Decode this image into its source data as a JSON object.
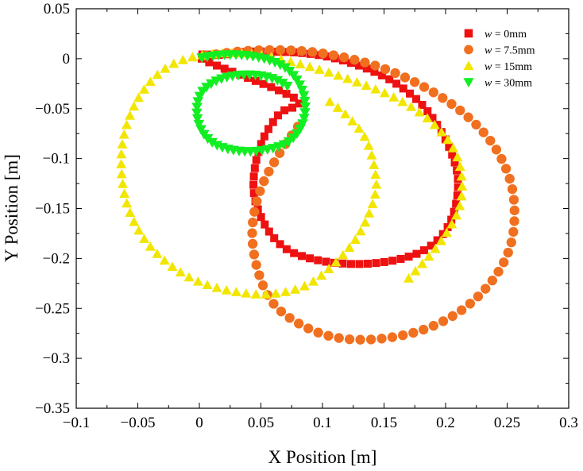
{
  "chart_data": {
    "type": "scatter",
    "xlabel": "X Position [m]",
    "ylabel": "Y Position [m]",
    "xlim": [
      -0.1,
      0.3
    ],
    "ylim": [
      -0.35,
      0.05
    ],
    "xticks": [
      "−0.1",
      "−0.05",
      "0",
      "0.05",
      "0.1",
      "0.15",
      "0.2",
      "0.25",
      "0.3"
    ],
    "yticks": [
      "0.05",
      "0",
      "−0.05",
      "−0.1",
      "−0.15",
      "−0.2",
      "−0.25",
      "−0.3",
      "−0.35"
    ],
    "grid": false,
    "legend": {
      "placement": "top-right"
    },
    "series": [
      {
        "name_prefix": "w",
        "name": " = 0mm",
        "marker": "square",
        "color": "#ee1111",
        "shape": "loop",
        "points": [
          [
            0.002,
            0.0
          ],
          [
            0.02,
            0.004
          ],
          [
            0.04,
            0.007
          ],
          [
            0.06,
            0.007
          ],
          [
            0.08,
            0.006
          ],
          [
            0.1,
            0.003
          ],
          [
            0.12,
            -0.003
          ],
          [
            0.14,
            -0.012
          ],
          [
            0.16,
            -0.025
          ],
          [
            0.18,
            -0.045
          ],
          [
            0.195,
            -0.07
          ],
          [
            0.205,
            -0.095
          ],
          [
            0.21,
            -0.12
          ],
          [
            0.208,
            -0.148
          ],
          [
            0.2,
            -0.172
          ],
          [
            0.185,
            -0.19
          ],
          [
            0.165,
            -0.2
          ],
          [
            0.14,
            -0.205
          ],
          [
            0.115,
            -0.205
          ],
          [
            0.09,
            -0.2
          ],
          [
            0.07,
            -0.19
          ],
          [
            0.055,
            -0.17
          ],
          [
            0.045,
            -0.14
          ],
          [
            0.045,
            -0.11
          ],
          [
            0.052,
            -0.08
          ],
          [
            0.065,
            -0.055
          ],
          [
            0.078,
            -0.04
          ]
        ]
      },
      {
        "name_prefix": "w",
        "name": " = 7.5mm",
        "marker": "circle",
        "color": "#f07020",
        "shape": "spiral",
        "points": [
          [
            0.005,
            0.003
          ],
          [
            0.04,
            0.008
          ],
          [
            0.08,
            0.008
          ],
          [
            0.115,
            0.002
          ],
          [
            0.15,
            -0.01
          ],
          [
            0.185,
            -0.03
          ],
          [
            0.215,
            -0.055
          ],
          [
            0.238,
            -0.085
          ],
          [
            0.252,
            -0.12
          ],
          [
            0.256,
            -0.155
          ],
          [
            0.252,
            -0.19
          ],
          [
            0.238,
            -0.222
          ],
          [
            0.215,
            -0.25
          ],
          [
            0.185,
            -0.27
          ],
          [
            0.15,
            -0.28
          ],
          [
            0.115,
            -0.28
          ],
          [
            0.085,
            -0.268
          ],
          [
            0.06,
            -0.245
          ],
          [
            0.047,
            -0.21
          ],
          [
            0.043,
            -0.17
          ],
          [
            0.05,
            -0.13
          ],
          [
            0.065,
            -0.095
          ],
          [
            0.08,
            -0.068
          ]
        ]
      },
      {
        "name_prefix": "w",
        "name": " = 15mm",
        "marker": "triangle-up",
        "color": "#f2e600",
        "shape": "spiral",
        "points": [
          [
            0.17,
            -0.22
          ],
          [
            0.195,
            -0.185
          ],
          [
            0.212,
            -0.145
          ],
          [
            0.21,
            -0.1
          ],
          [
            0.19,
            -0.065
          ],
          [
            0.16,
            -0.04
          ],
          [
            0.12,
            -0.02
          ],
          [
            0.08,
            -0.005
          ],
          [
            0.04,
            0.005
          ],
          [
            0.0,
            0.003
          ],
          [
            -0.03,
            -0.012
          ],
          [
            -0.052,
            -0.045
          ],
          [
            -0.063,
            -0.09
          ],
          [
            -0.06,
            -0.14
          ],
          [
            -0.045,
            -0.18
          ],
          [
            -0.02,
            -0.21
          ],
          [
            0.01,
            -0.228
          ],
          [
            0.05,
            -0.236
          ],
          [
            0.085,
            -0.228
          ],
          [
            0.11,
            -0.205
          ],
          [
            0.13,
            -0.175
          ],
          [
            0.142,
            -0.14
          ],
          [
            0.143,
            -0.115
          ],
          [
            0.135,
            -0.08
          ],
          [
            0.118,
            -0.055
          ],
          [
            0.1,
            -0.038
          ]
        ]
      },
      {
        "name_prefix": "w",
        "name": " = 30mm",
        "marker": "triangle-down",
        "color": "#11ee22",
        "shape": "spiral",
        "points": [
          [
            0.002,
            0.001
          ],
          [
            0.02,
            0.004
          ],
          [
            0.04,
            0.003
          ],
          [
            0.058,
            -0.002
          ],
          [
            0.073,
            -0.012
          ],
          [
            0.083,
            -0.03
          ],
          [
            0.086,
            -0.05
          ],
          [
            0.082,
            -0.07
          ],
          [
            0.07,
            -0.085
          ],
          [
            0.05,
            -0.092
          ],
          [
            0.03,
            -0.092
          ],
          [
            0.012,
            -0.085
          ],
          [
            0.001,
            -0.07
          ],
          [
            -0.002,
            -0.05
          ],
          [
            0.003,
            -0.032
          ],
          [
            0.018,
            -0.02
          ],
          [
            0.04,
            -0.016
          ],
          [
            0.06,
            -0.02
          ],
          [
            0.075,
            -0.03
          ]
        ]
      }
    ]
  }
}
